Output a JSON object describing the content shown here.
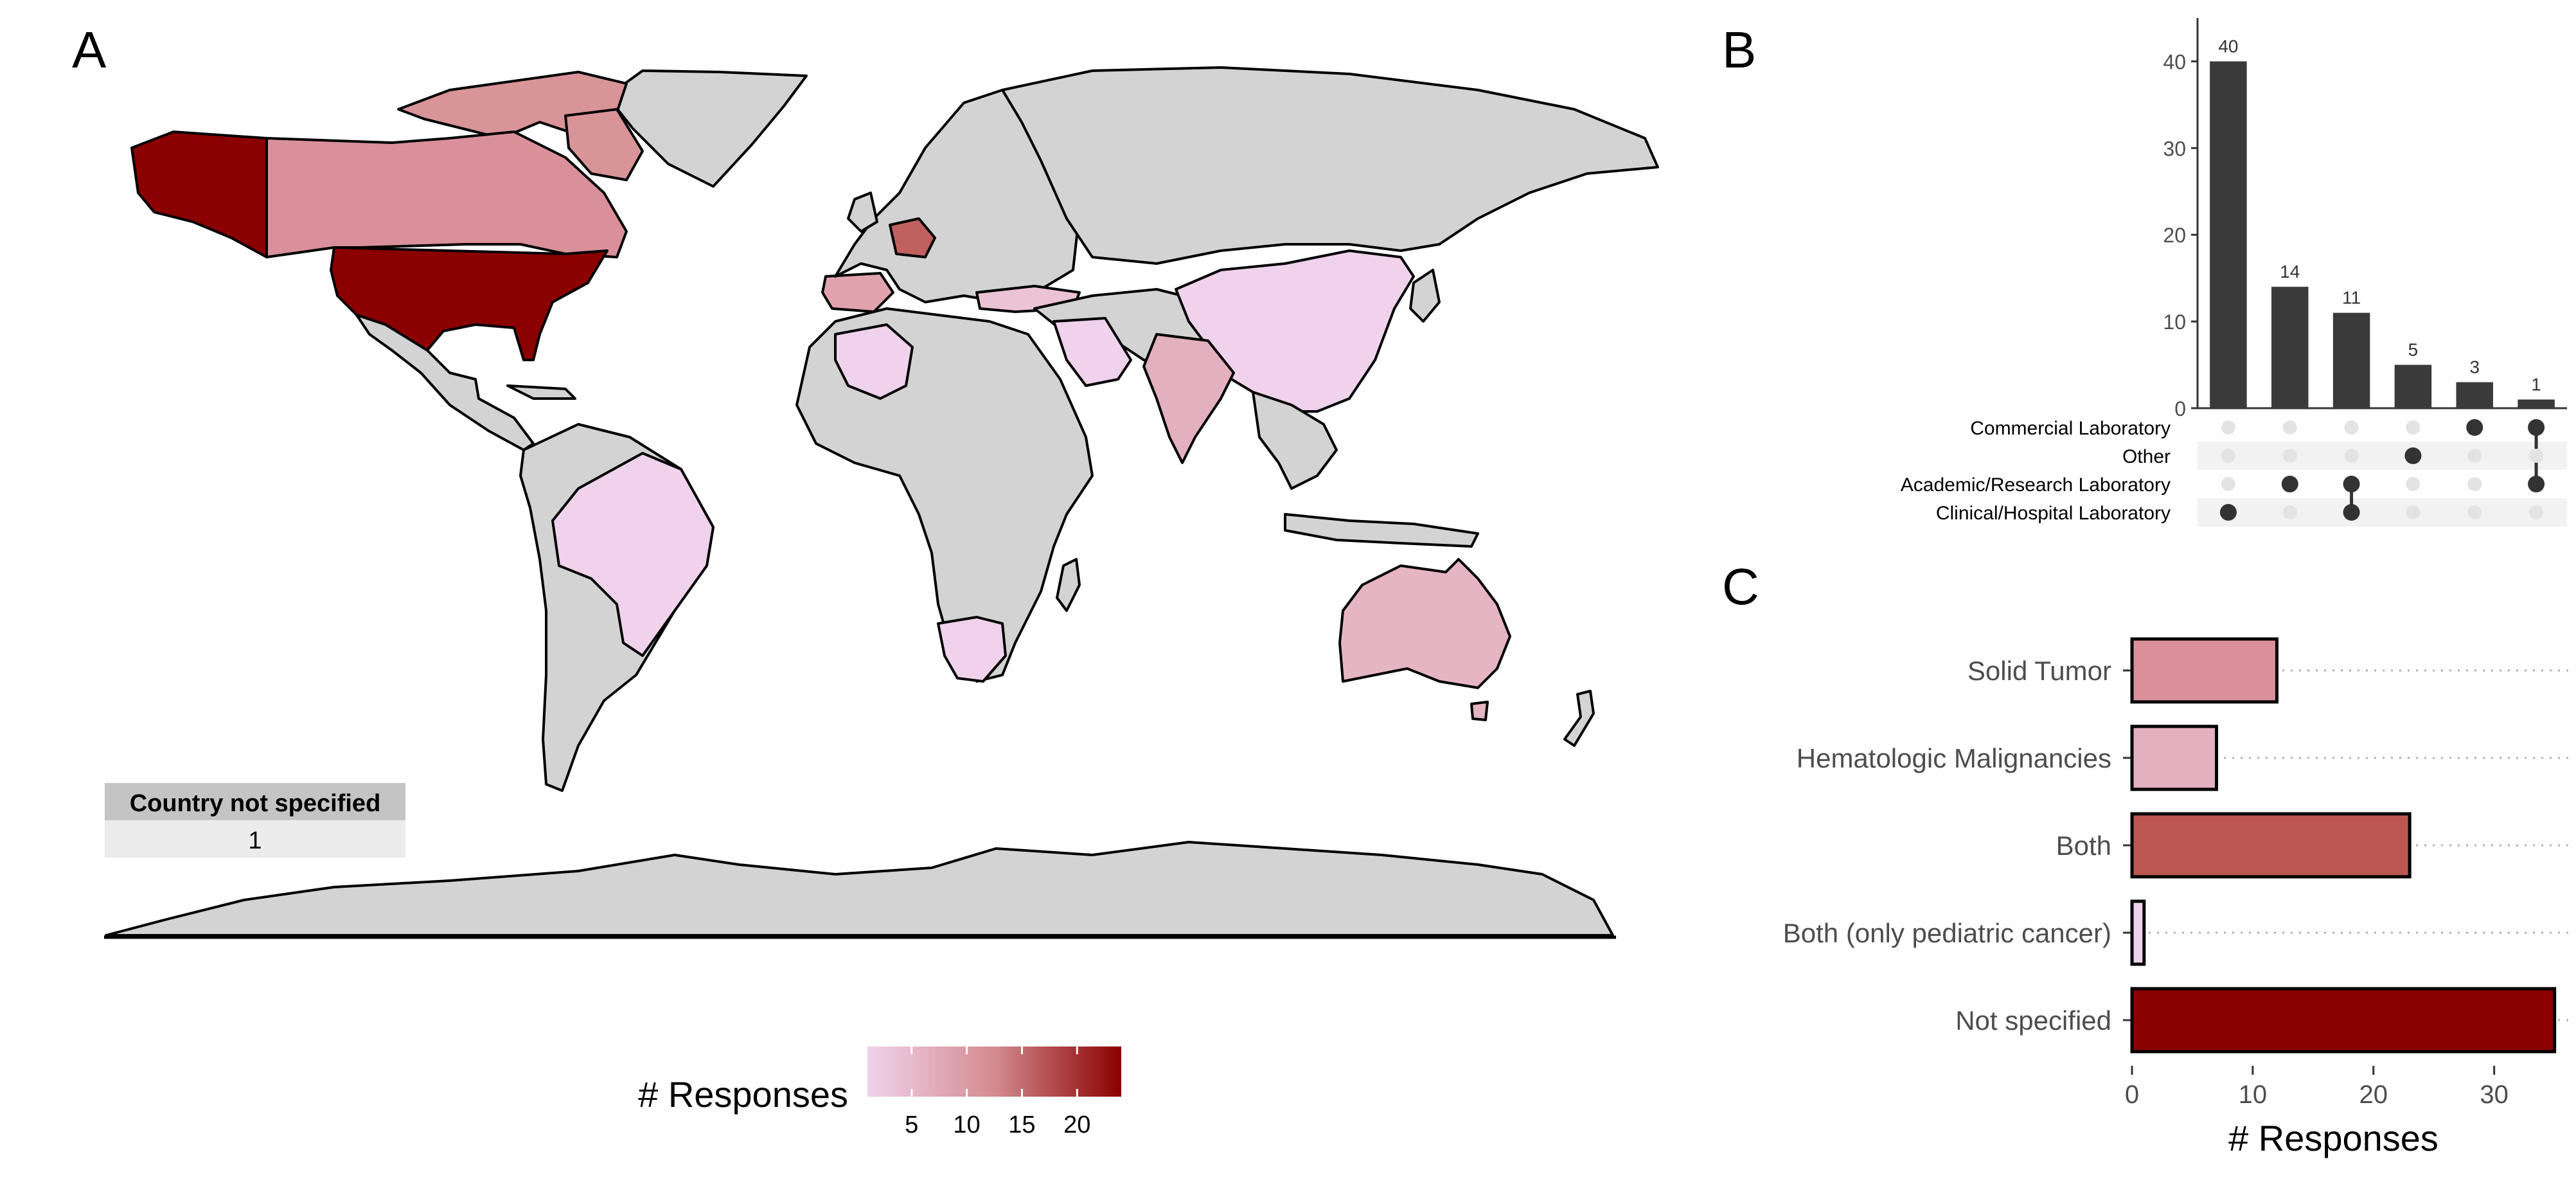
{
  "panels": {
    "a": "A",
    "b": "B",
    "c": "C"
  },
  "colors": {
    "land": "#d3d3d3",
    "border": "#000000",
    "scale_low": "#f0d2ec",
    "scale_high": "#8b0000",
    "upset_bar": "#3a3a3a",
    "dot_active": "#333333",
    "dot_inactive": "#e3e3e3"
  },
  "map": {
    "legend_title": "# Responses",
    "legend_ticks": [
      "5",
      "10",
      "15",
      "20"
    ],
    "legend_range": [
      1,
      24
    ],
    "unspecified_table": {
      "header": "Country not specified",
      "value": "1"
    },
    "country_fills": [
      {
        "country": "United States",
        "level": 24
      },
      {
        "country": "Alaska",
        "level": 24
      },
      {
        "country": "Canada",
        "level": 10
      },
      {
        "country": "Germany",
        "level": 15
      },
      {
        "country": "Spain",
        "level": 8
      },
      {
        "country": "India",
        "level": 6
      },
      {
        "country": "China",
        "level": 2
      },
      {
        "country": "Brazil",
        "level": 2
      },
      {
        "country": "Australia",
        "level": 5
      },
      {
        "country": "South Africa",
        "level": 2
      },
      {
        "country": "Algeria",
        "level": 1
      },
      {
        "country": "Saudi Arabia",
        "level": 1
      },
      {
        "country": "Turkey",
        "level": 2
      }
    ]
  },
  "chart_data": [
    {
      "type": "bar",
      "title": "",
      "categories": [
        "Clinical/Hospital Laboratory",
        "Academic/Research Laboratory",
        "Clinical/Hospital Laboratory + Academic/Research Laboratory",
        "Other",
        "Commercial Laboratory",
        "Commercial Laboratory + Academic/Research Laboratory"
      ],
      "values": [
        40,
        14,
        11,
        5,
        3,
        1
      ],
      "data_labels": [
        "40",
        "14",
        "11",
        "5",
        "3",
        "1"
      ],
      "ylim": [
        0,
        45
      ],
      "yticks": [
        "0",
        "10",
        "20",
        "30",
        "40"
      ],
      "set_names": [
        "Commercial Laboratory",
        "Other",
        "Academic/Research Laboratory",
        "Clinical/Hospital Laboratory"
      ],
      "matrix": [
        [
          false,
          false,
          false,
          true
        ],
        [
          false,
          false,
          true,
          false
        ],
        [
          false,
          false,
          true,
          true
        ],
        [
          false,
          true,
          false,
          false
        ],
        [
          true,
          false,
          false,
          false
        ],
        [
          true,
          false,
          true,
          false
        ]
      ]
    },
    {
      "type": "bar",
      "orientation": "horizontal",
      "categories": [
        "Solid Tumor",
        "Hematologic Malignancies",
        "Both",
        "Both (only pediatric cancer)",
        "Not specified"
      ],
      "values": [
        12,
        7,
        23,
        1,
        35
      ],
      "colors": [
        "#d9909a",
        "#e3b0bf",
        "#bd5752",
        "#f0d2ec",
        "#8b0000"
      ],
      "xlabel": "# Responses",
      "xlim": [
        0,
        35.5
      ],
      "xticks": [
        "0",
        "10",
        "20",
        "30"
      ]
    }
  ]
}
